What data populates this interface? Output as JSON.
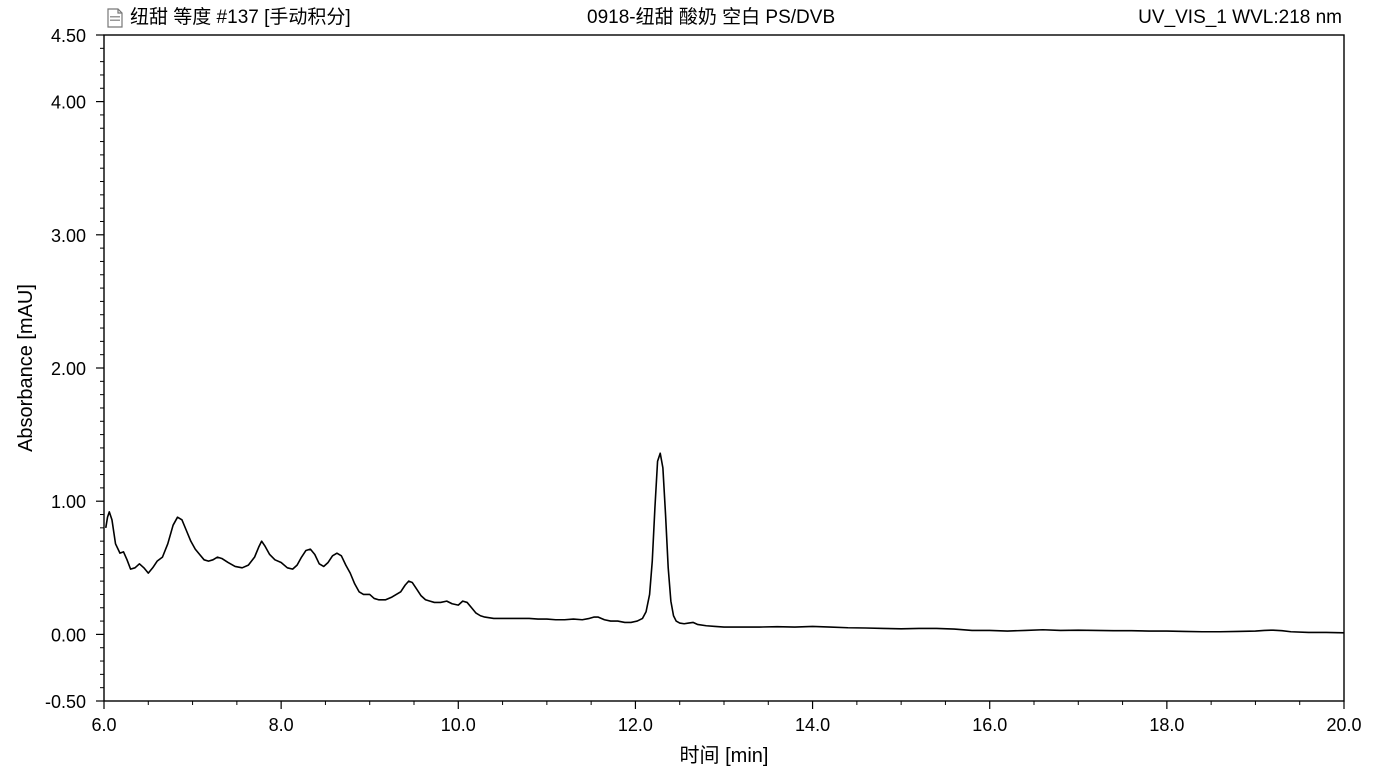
{
  "header": {
    "left_title": "纽甜 等度 #137 [手动积分]",
    "center_title": "0918-纽甜 酸奶 空白 PS/DVB",
    "right_title": "UV_VIS_1 WVL:218 nm",
    "icon": "document-icon"
  },
  "chart_data": {
    "type": "line",
    "xlabel": "时间 [min]",
    "ylabel": "Absorbance [mAU]",
    "xlim": [
      6.0,
      20.0
    ],
    "ylim": [
      -0.5,
      4.5
    ],
    "x_ticks": [
      6.0,
      8.0,
      10.0,
      12.0,
      14.0,
      16.0,
      18.0,
      20.0
    ],
    "x_tick_labels": [
      "6.0",
      "8.0",
      "10.0",
      "12.0",
      "14.0",
      "16.0",
      "18.0",
      "20.0"
    ],
    "y_ticks": [
      -0.5,
      0.0,
      1.0,
      2.0,
      3.0,
      4.0,
      4.5
    ],
    "y_tick_labels": [
      "-0.50",
      "0.00",
      "1.00",
      "2.00",
      "3.00",
      "4.00",
      "4.50"
    ],
    "grid": false,
    "line_color": "#000000",
    "series": [
      {
        "x": [
          6.02,
          6.04,
          6.06,
          6.09,
          6.13,
          6.18,
          6.22,
          6.26,
          6.3,
          6.35,
          6.4,
          6.45,
          6.5,
          6.55,
          6.6,
          6.66,
          6.72,
          6.78,
          6.83,
          6.88,
          6.93,
          6.98,
          7.03,
          7.08,
          7.13,
          7.18,
          7.23,
          7.28,
          7.33,
          7.4,
          7.48,
          7.56,
          7.63,
          7.7,
          7.75,
          7.78,
          7.82,
          7.87,
          7.93,
          8.0,
          8.07,
          8.13,
          8.18,
          8.23,
          8.28,
          8.33,
          8.38,
          8.43,
          8.48,
          8.53,
          8.58,
          8.63,
          8.68,
          8.73,
          8.78,
          8.83,
          8.88,
          8.93,
          9.0,
          9.05,
          9.1,
          9.18,
          9.25,
          9.3,
          9.35,
          9.4,
          9.44,
          9.48,
          9.53,
          9.58,
          9.63,
          9.68,
          9.73,
          9.8,
          9.87,
          9.93,
          10.0,
          10.05,
          10.1,
          10.15,
          10.2,
          10.25,
          10.3,
          10.4,
          10.5,
          10.6,
          10.7,
          10.8,
          10.9,
          11.0,
          11.1,
          11.2,
          11.3,
          11.4,
          11.48,
          11.53,
          11.58,
          11.65,
          11.72,
          11.8,
          11.88,
          11.95,
          12.02,
          12.08,
          12.12,
          12.16,
          12.19,
          12.22,
          12.25,
          12.28,
          12.31,
          12.34,
          12.37,
          12.4,
          12.43,
          12.46,
          12.5,
          12.55,
          12.6,
          12.65,
          12.7,
          12.8,
          12.9,
          13.0,
          13.2,
          13.4,
          13.6,
          13.8,
          14.0,
          14.2,
          14.4,
          14.6,
          14.8,
          15.0,
          15.2,
          15.4,
          15.6,
          15.8,
          16.0,
          16.2,
          16.4,
          16.6,
          16.8,
          17.0,
          17.2,
          17.4,
          17.6,
          17.8,
          18.0,
          18.2,
          18.4,
          18.6,
          18.8,
          19.0,
          19.1,
          19.2,
          19.3,
          19.4,
          19.6,
          19.8,
          20.0
        ],
        "y": [
          0.8,
          0.88,
          0.92,
          0.86,
          0.68,
          0.61,
          0.62,
          0.56,
          0.49,
          0.5,
          0.53,
          0.5,
          0.46,
          0.5,
          0.55,
          0.58,
          0.68,
          0.82,
          0.88,
          0.86,
          0.78,
          0.7,
          0.64,
          0.6,
          0.56,
          0.55,
          0.56,
          0.58,
          0.57,
          0.54,
          0.51,
          0.5,
          0.52,
          0.58,
          0.66,
          0.7,
          0.66,
          0.6,
          0.56,
          0.54,
          0.5,
          0.49,
          0.52,
          0.58,
          0.63,
          0.64,
          0.6,
          0.53,
          0.51,
          0.54,
          0.59,
          0.61,
          0.59,
          0.52,
          0.46,
          0.38,
          0.32,
          0.3,
          0.3,
          0.27,
          0.26,
          0.26,
          0.28,
          0.3,
          0.32,
          0.37,
          0.4,
          0.39,
          0.34,
          0.29,
          0.26,
          0.25,
          0.24,
          0.24,
          0.25,
          0.23,
          0.22,
          0.25,
          0.24,
          0.2,
          0.16,
          0.14,
          0.13,
          0.12,
          0.12,
          0.12,
          0.12,
          0.12,
          0.115,
          0.115,
          0.11,
          0.11,
          0.115,
          0.11,
          0.12,
          0.13,
          0.13,
          0.11,
          0.1,
          0.1,
          0.09,
          0.09,
          0.1,
          0.12,
          0.17,
          0.3,
          0.55,
          0.95,
          1.3,
          1.36,
          1.25,
          0.9,
          0.5,
          0.25,
          0.14,
          0.1,
          0.085,
          0.08,
          0.085,
          0.09,
          0.075,
          0.065,
          0.06,
          0.055,
          0.055,
          0.055,
          0.058,
          0.055,
          0.06,
          0.055,
          0.05,
          0.048,
          0.045,
          0.042,
          0.045,
          0.045,
          0.04,
          0.03,
          0.03,
          0.025,
          0.03,
          0.035,
          0.03,
          0.032,
          0.03,
          0.028,
          0.028,
          0.025,
          0.025,
          0.022,
          0.02,
          0.02,
          0.022,
          0.025,
          0.03,
          0.032,
          0.028,
          0.02,
          0.015,
          0.015,
          0.012
        ]
      }
    ]
  }
}
